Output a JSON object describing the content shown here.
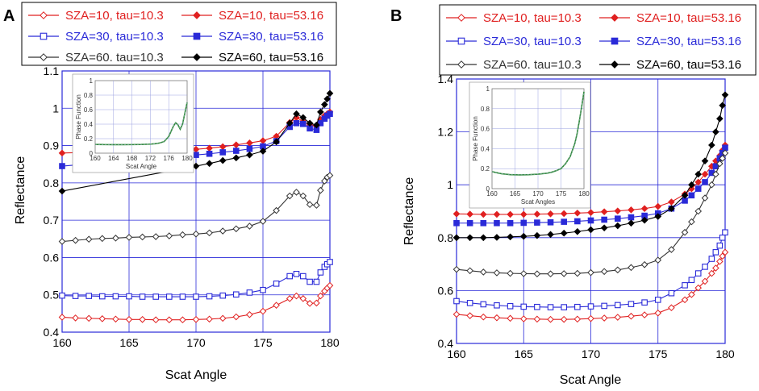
{
  "chart_data": [
    {
      "panel": "A",
      "type": "line",
      "xlabel": "Scat Angle",
      "ylabel": "Reflectance",
      "xlim": [
        160,
        180
      ],
      "ylim": [
        0.4,
        1.1
      ],
      "x_ticks": [
        "160",
        "165",
        "170",
        "175",
        "180"
      ],
      "y_ticks": [
        "0.4",
        "0.5",
        "0.6",
        "0.7",
        "0.8",
        "0.9",
        "1",
        "1.1"
      ],
      "legend": [
        "SZA=10, tau=10.3",
        "SZA=10, tau=53.16",
        "SZA=30, tau=10.3",
        "SZA=30, tau=53.16",
        "SZA=60. tau=10.3",
        "SZA=60, tau=53.16"
      ],
      "series": [
        {
          "name": "SZA=10, tau=10.3",
          "color": "#e02020",
          "marker": "diamond-open",
          "x": [
            160,
            161,
            162,
            163,
            164,
            165,
            166,
            167,
            168,
            169,
            170,
            171,
            172,
            173,
            174,
            175,
            176,
            177,
            177.5,
            178,
            178.5,
            179,
            179.3,
            179.6,
            179.8,
            180
          ],
          "values": [
            0.44,
            0.438,
            0.437,
            0.436,
            0.435,
            0.434,
            0.434,
            0.433,
            0.433,
            0.433,
            0.434,
            0.435,
            0.437,
            0.441,
            0.447,
            0.456,
            0.472,
            0.49,
            0.497,
            0.49,
            0.477,
            0.478,
            0.497,
            0.51,
            0.518,
            0.525
          ]
        },
        {
          "name": "SZA=10, tau=53.16",
          "color": "#e02020",
          "marker": "diamond-filled",
          "x": [
            160,
            170,
            171,
            172,
            173,
            174,
            175,
            176,
            177,
            177.5,
            178,
            178.5,
            179,
            179.3,
            179.6,
            179.8,
            180
          ],
          "values": [
            0.88,
            0.89,
            0.893,
            0.897,
            0.902,
            0.907,
            0.913,
            0.925,
            0.962,
            0.975,
            0.965,
            0.955,
            0.952,
            0.97,
            0.98,
            0.985,
            0.99
          ]
        },
        {
          "name": "SZA=30, tau=10.3",
          "color": "#2a2ad8",
          "marker": "square-open",
          "x": [
            160,
            161,
            162,
            163,
            164,
            165,
            166,
            167,
            168,
            169,
            170,
            171,
            172,
            173,
            174,
            175,
            176,
            177,
            177.5,
            178,
            178.5,
            179,
            179.3,
            179.6,
            179.8,
            180
          ],
          "values": [
            0.498,
            0.497,
            0.497,
            0.496,
            0.496,
            0.496,
            0.495,
            0.495,
            0.495,
            0.495,
            0.495,
            0.496,
            0.498,
            0.501,
            0.506,
            0.513,
            0.53,
            0.55,
            0.556,
            0.55,
            0.535,
            0.535,
            0.56,
            0.575,
            0.582,
            0.588
          ]
        },
        {
          "name": "SZA=30, tau=53.16",
          "color": "#2a2ad8",
          "marker": "square-filled",
          "x": [
            160,
            170,
            171,
            172,
            173,
            174,
            175,
            176,
            177,
            177.5,
            178,
            178.5,
            179,
            179.3,
            179.6,
            179.8,
            180
          ],
          "values": [
            0.845,
            0.875,
            0.878,
            0.882,
            0.886,
            0.891,
            0.898,
            0.912,
            0.95,
            0.96,
            0.958,
            0.946,
            0.942,
            0.96,
            0.972,
            0.98,
            0.985
          ]
        },
        {
          "name": "SZA=60. tau=10.3",
          "color": "#333333",
          "marker": "diamond-open",
          "x": [
            160,
            161,
            162,
            163,
            164,
            165,
            166,
            167,
            168,
            169,
            170,
            171,
            172,
            173,
            174,
            175,
            176,
            177,
            177.5,
            178,
            178.5,
            179,
            179.3,
            179.6,
            179.8,
            180
          ],
          "values": [
            0.643,
            0.646,
            0.649,
            0.651,
            0.652,
            0.654,
            0.655,
            0.656,
            0.658,
            0.661,
            0.663,
            0.666,
            0.671,
            0.677,
            0.684,
            0.697,
            0.726,
            0.765,
            0.775,
            0.765,
            0.742,
            0.74,
            0.78,
            0.805,
            0.815,
            0.82
          ]
        },
        {
          "name": "SZA=60, tau=53.16",
          "color": "#000000",
          "marker": "diamond-filled",
          "x": [
            160,
            170,
            171,
            172,
            173,
            174,
            175,
            176,
            177,
            177.5,
            178,
            178.5,
            179,
            179.3,
            179.6,
            179.8,
            180
          ],
          "values": [
            0.778,
            0.845,
            0.852,
            0.86,
            0.867,
            0.875,
            0.885,
            0.91,
            0.96,
            0.985,
            0.975,
            0.96,
            0.955,
            0.99,
            1.01,
            1.025,
            1.04
          ]
        }
      ],
      "inset": {
        "xlabel": "Scat Angle",
        "ylabel": "Phase Function",
        "xlim": [
          160,
          180
        ],
        "ylim": [
          0,
          1
        ],
        "x_ticks": [
          "160",
          "164",
          "168",
          "172",
          "176",
          "180"
        ],
        "y_ticks": [
          "0",
          "0.2",
          "0.4",
          "0.6",
          "0.8",
          "1"
        ],
        "x": [
          160,
          162,
          164,
          166,
          168,
          170,
          172,
          173,
          174,
          175,
          176,
          176.5,
          177,
          177.5,
          178,
          178.5,
          179,
          179.5,
          180
        ],
        "values": [
          0.12,
          0.118,
          0.117,
          0.117,
          0.118,
          0.12,
          0.125,
          0.13,
          0.14,
          0.16,
          0.23,
          0.3,
          0.37,
          0.42,
          0.39,
          0.33,
          0.4,
          0.55,
          0.7
        ]
      }
    },
    {
      "panel": "B",
      "type": "line",
      "xlabel": "Scat Angle",
      "ylabel": "Reflectance",
      "xlim": [
        160,
        180
      ],
      "ylim": [
        0.4,
        1.4
      ],
      "x_ticks": [
        "160",
        "165",
        "170",
        "175",
        "180"
      ],
      "y_ticks": [
        "0.4",
        "0.6",
        "0.8",
        "1",
        "1.2",
        "1.4"
      ],
      "legend": [
        "SZA=10, tau=10.3",
        "SZA=10, tau=53.16",
        "SZA=30, tau=10.3",
        "SZA=30, tau=53.16",
        "SZA=60. tau=10.3",
        "SZA=60, tau=53.16"
      ],
      "series": [
        {
          "name": "SZA=10, tau=10.3",
          "color": "#e02020",
          "marker": "diamond-open",
          "x": [
            160,
            161,
            162,
            163,
            164,
            165,
            166,
            167,
            168,
            169,
            170,
            171,
            172,
            173,
            174,
            175,
            176,
            177,
            177.5,
            178,
            178.5,
            179,
            179.3,
            179.6,
            179.8,
            180
          ],
          "values": [
            0.51,
            0.505,
            0.5,
            0.497,
            0.495,
            0.493,
            0.492,
            0.491,
            0.491,
            0.492,
            0.494,
            0.496,
            0.499,
            0.503,
            0.508,
            0.515,
            0.535,
            0.565,
            0.585,
            0.61,
            0.635,
            0.665,
            0.685,
            0.71,
            0.73,
            0.745
          ]
        },
        {
          "name": "SZA=10, tau=53.16",
          "color": "#e02020",
          "marker": "diamond-filled",
          "x": [
            160,
            161,
            162,
            163,
            164,
            165,
            166,
            167,
            168,
            169,
            170,
            171,
            172,
            173,
            174,
            175,
            176,
            177,
            177.5,
            178,
            178.5,
            179,
            179.3,
            179.6,
            179.8,
            180
          ],
          "values": [
            0.89,
            0.889,
            0.888,
            0.888,
            0.888,
            0.888,
            0.889,
            0.89,
            0.891,
            0.893,
            0.895,
            0.898,
            0.901,
            0.905,
            0.91,
            0.918,
            0.935,
            0.965,
            0.985,
            1.01,
            1.04,
            1.07,
            1.09,
            1.11,
            1.13,
            1.15
          ]
        },
        {
          "name": "SZA=30, tau=10.3",
          "color": "#2a2ad8",
          "marker": "square-open",
          "x": [
            160,
            161,
            162,
            163,
            164,
            165,
            166,
            167,
            168,
            169,
            170,
            171,
            172,
            173,
            174,
            175,
            176,
            177,
            177.5,
            178,
            178.5,
            179,
            179.3,
            179.6,
            179.8,
            180
          ],
          "values": [
            0.56,
            0.553,
            0.548,
            0.544,
            0.541,
            0.539,
            0.538,
            0.537,
            0.537,
            0.538,
            0.54,
            0.542,
            0.545,
            0.549,
            0.555,
            0.565,
            0.59,
            0.62,
            0.64,
            0.665,
            0.69,
            0.72,
            0.745,
            0.77,
            0.8,
            0.82
          ]
        },
        {
          "name": "SZA=30, tau=53.16",
          "color": "#2a2ad8",
          "marker": "square-filled",
          "x": [
            160,
            161,
            162,
            163,
            164,
            165,
            166,
            167,
            168,
            169,
            170,
            171,
            172,
            173,
            174,
            175,
            176,
            177,
            177.5,
            178,
            178.5,
            179,
            179.3,
            179.6,
            179.8,
            180
          ],
          "values": [
            0.855,
            0.855,
            0.855,
            0.855,
            0.855,
            0.856,
            0.857,
            0.858,
            0.86,
            0.862,
            0.865,
            0.868,
            0.872,
            0.877,
            0.883,
            0.892,
            0.91,
            0.94,
            0.96,
            0.985,
            1.01,
            1.045,
            1.07,
            1.1,
            1.12,
            1.14
          ]
        },
        {
          "name": "SZA=60. tau=10.3",
          "color": "#333333",
          "marker": "diamond-open",
          "x": [
            160,
            161,
            162,
            163,
            164,
            165,
            166,
            167,
            168,
            169,
            170,
            171,
            172,
            173,
            174,
            175,
            176,
            177,
            177.5,
            178,
            178.5,
            179,
            179.3,
            179.6,
            179.8,
            180
          ],
          "values": [
            0.68,
            0.675,
            0.67,
            0.667,
            0.665,
            0.664,
            0.663,
            0.663,
            0.664,
            0.665,
            0.668,
            0.672,
            0.678,
            0.687,
            0.698,
            0.715,
            0.755,
            0.82,
            0.86,
            0.9,
            0.95,
            1,
            1.04,
            1.08,
            1.1,
            1.12
          ]
        },
        {
          "name": "SZA=60, tau=53.16",
          "color": "#000000",
          "marker": "diamond-filled",
          "x": [
            160,
            161,
            162,
            163,
            164,
            165,
            166,
            167,
            168,
            169,
            170,
            171,
            172,
            173,
            174,
            175,
            176,
            177,
            177.5,
            178,
            178.5,
            179,
            179.3,
            179.6,
            179.8,
            180
          ],
          "values": [
            0.8,
            0.8,
            0.8,
            0.801,
            0.803,
            0.805,
            0.808,
            0.812,
            0.817,
            0.823,
            0.83,
            0.837,
            0.845,
            0.855,
            0.866,
            0.88,
            0.91,
            0.96,
            1,
            1.04,
            1.09,
            1.15,
            1.2,
            1.25,
            1.3,
            1.34
          ]
        }
      ],
      "inset": {
        "xlabel": "Scat Angles",
        "ylabel": "Phase Function",
        "xlim": [
          160,
          180
        ],
        "ylim": [
          0,
          1
        ],
        "x_ticks": [
          "160",
          "165",
          "170",
          "175",
          "180"
        ],
        "y_ticks": [
          "0",
          "0.2",
          "0.4",
          "0.6",
          "0.8",
          "1"
        ],
        "x": [
          160,
          162,
          164,
          166,
          168,
          170,
          172,
          173,
          174,
          175,
          176,
          177,
          178,
          178.5,
          179,
          179.5,
          180
        ],
        "values": [
          0.17,
          0.15,
          0.14,
          0.138,
          0.14,
          0.145,
          0.155,
          0.165,
          0.18,
          0.2,
          0.25,
          0.32,
          0.45,
          0.55,
          0.68,
          0.82,
          0.97
        ]
      }
    }
  ]
}
